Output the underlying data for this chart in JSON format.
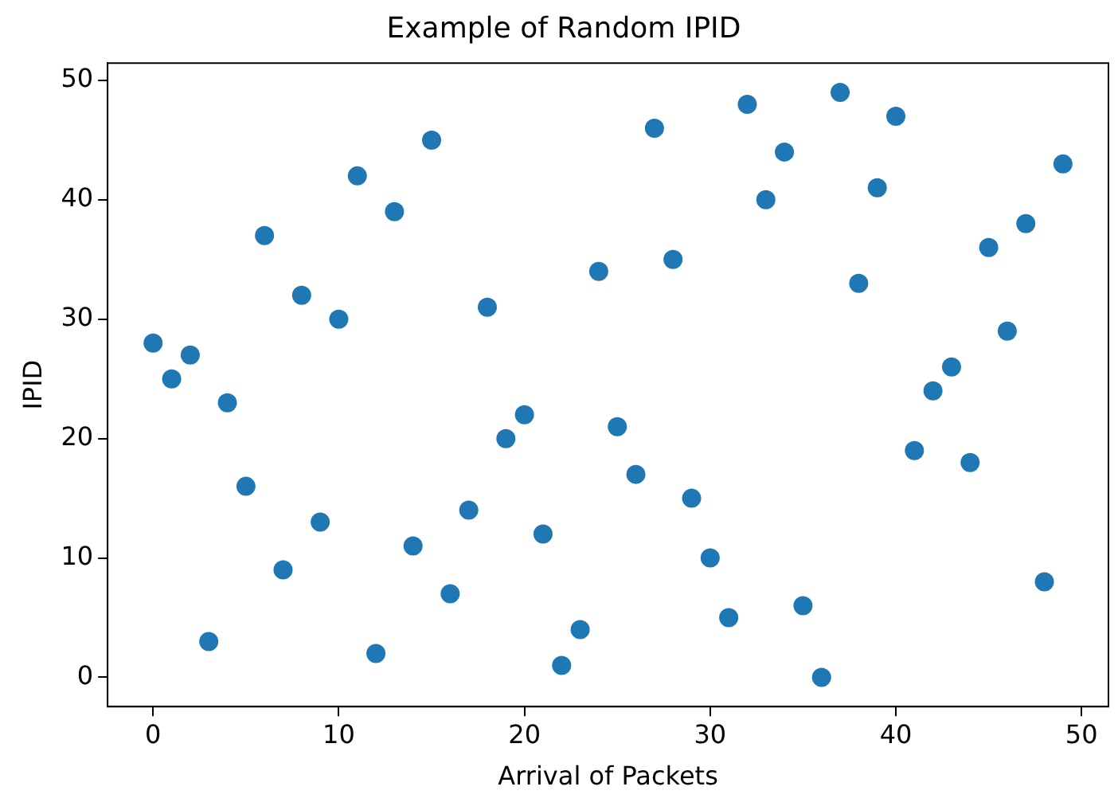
{
  "chart_data": {
    "type": "scatter",
    "title": "Example of Random IPID",
    "xlabel": "Arrival of Packets",
    "ylabel": "IPID",
    "x": [
      0,
      1,
      2,
      3,
      4,
      5,
      6,
      7,
      8,
      9,
      10,
      11,
      12,
      13,
      14,
      15,
      16,
      17,
      18,
      19,
      20,
      21,
      22,
      23,
      24,
      25,
      26,
      27,
      28,
      29,
      30,
      31,
      32,
      33,
      34,
      35,
      36,
      37,
      38,
      39,
      40,
      41,
      42,
      43,
      44,
      45,
      46,
      47,
      48,
      49
    ],
    "values": [
      28,
      25,
      27,
      3,
      23,
      16,
      37,
      9,
      32,
      13,
      30,
      42,
      2,
      39,
      11,
      45,
      7,
      14,
      31,
      20,
      22,
      12,
      1,
      4,
      34,
      21,
      17,
      46,
      35,
      15,
      10,
      5,
      48,
      40,
      44,
      6,
      0,
      49,
      33,
      41,
      47,
      19,
      24,
      26,
      18,
      36,
      29,
      38,
      8,
      43
    ],
    "color": "#1f77b4",
    "marker": "circle",
    "grid": false,
    "legend": false,
    "xlim": [
      -2.45,
      51.45
    ],
    "ylim": [
      -2.45,
      51.45
    ],
    "xticks": [
      0,
      10,
      20,
      30,
      40,
      50
    ],
    "yticks": [
      0,
      10,
      20,
      30,
      40,
      50
    ]
  }
}
